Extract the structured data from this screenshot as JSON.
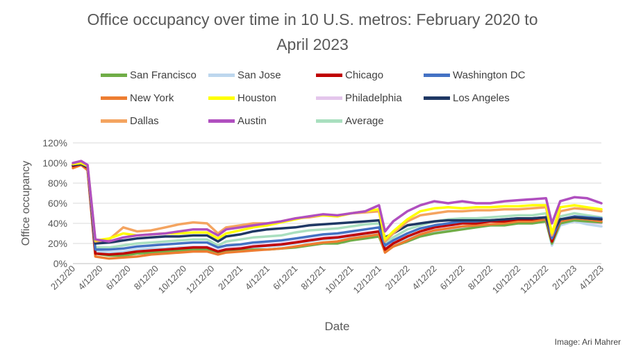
{
  "credit": "Image: Ari Mahrer",
  "colors": {
    "axis_text": "#595959",
    "gridline": "#d9d9d9"
  },
  "chart_data": {
    "type": "line",
    "title": "Office occupancy over time in 10 U.S. metros: February 2020 to April 2023",
    "title_lines": [
      "Office occupancy over time in 10 U.S. metros: February 2020 to",
      "April 2023"
    ],
    "xlabel": "Date",
    "ylabel": "Office occupancy",
    "ylim": [
      0,
      120
    ],
    "yticks": [
      0,
      20,
      40,
      60,
      80,
      100,
      120
    ],
    "ytick_labels": [
      "0%",
      "20%",
      "40%",
      "60%",
      "80%",
      "100%",
      "120%"
    ],
    "xticks": [
      "2/12/20",
      "4/12/20",
      "6/12/20",
      "8/12/20",
      "10/12/20",
      "12/12/20",
      "2/12/21",
      "4/12/21",
      "6/12/21",
      "8/12/21",
      "10/12/21",
      "12/12/21",
      "2/12/22",
      "4/12/22",
      "6/12/22",
      "8/12/22",
      "10/12/22",
      "12/12/22",
      "2/12/23",
      "4/12/23"
    ],
    "grid": true,
    "legend_position": "top",
    "x": [
      "2/12/20",
      "3/1/20",
      "3/15/20",
      "4/1/20",
      "5/1/20",
      "6/1/20",
      "7/1/20",
      "8/1/20",
      "9/1/20",
      "10/1/20",
      "11/1/20",
      "12/1/20",
      "12/25/20",
      "1/12/21",
      "2/12/21",
      "3/12/21",
      "4/12/21",
      "5/12/21",
      "6/12/21",
      "7/12/21",
      "8/12/21",
      "9/12/21",
      "10/12/21",
      "11/12/21",
      "12/12/21",
      "12/25/21",
      "1/12/22",
      "2/12/22",
      "3/12/22",
      "4/12/22",
      "5/12/22",
      "6/12/22",
      "7/12/22",
      "8/12/22",
      "9/12/22",
      "10/12/22",
      "11/12/22",
      "12/12/22",
      "12/25/22",
      "1/12/23",
      "2/12/23",
      "3/12/23",
      "4/12/23"
    ],
    "series": [
      {
        "name": "San Francisco",
        "color": "#70ad47",
        "values": [
          97,
          99,
          95,
          10,
          8,
          8,
          10,
          11,
          12,
          13,
          14,
          14,
          10,
          12,
          13,
          14,
          14,
          15,
          16,
          18,
          20,
          20,
          23,
          25,
          27,
          12,
          17,
          22,
          27,
          30,
          32,
          34,
          36,
          38,
          38,
          40,
          40,
          42,
          20,
          40,
          43,
          42,
          41
        ]
      },
      {
        "name": "San Jose",
        "color": "#bdd7ee",
        "values": [
          96,
          98,
          94,
          12,
          11,
          12,
          14,
          15,
          15,
          16,
          16,
          16,
          12,
          14,
          15,
          16,
          17,
          18,
          20,
          22,
          24,
          25,
          27,
          29,
          30,
          14,
          19,
          25,
          29,
          32,
          34,
          36,
          37,
          38,
          39,
          40,
          40,
          42,
          18,
          38,
          42,
          39,
          37
        ]
      },
      {
        "name": "Chicago",
        "color": "#c00000",
        "values": [
          97,
          99,
          95,
          10,
          9,
          10,
          12,
          13,
          14,
          15,
          16,
          16,
          12,
          14,
          15,
          17,
          18,
          19,
          21,
          23,
          25,
          26,
          28,
          30,
          32,
          14,
          20,
          27,
          32,
          36,
          38,
          40,
          40,
          42,
          42,
          44,
          44,
          46,
          22,
          44,
          46,
          45,
          44
        ]
      },
      {
        "name": "Washington DC",
        "color": "#4472c4",
        "values": [
          98,
          99,
          96,
          14,
          14,
          15,
          17,
          18,
          19,
          20,
          21,
          21,
          16,
          18,
          19,
          21,
          22,
          23,
          25,
          27,
          29,
          30,
          32,
          34,
          36,
          18,
          23,
          30,
          35,
          38,
          40,
          42,
          42,
          43,
          44,
          45,
          45,
          46,
          25,
          44,
          47,
          46,
          45
        ]
      },
      {
        "name": "New York",
        "color": "#ed7d31",
        "values": [
          95,
          98,
          93,
          7,
          5,
          6,
          7,
          9,
          10,
          11,
          12,
          12,
          9,
          11,
          12,
          13,
          14,
          15,
          17,
          19,
          21,
          22,
          25,
          27,
          29,
          11,
          17,
          23,
          29,
          33,
          35,
          37,
          38,
          39,
          40,
          42,
          42,
          44,
          23,
          42,
          45,
          44,
          42
        ]
      },
      {
        "name": "Houston",
        "color": "#ffff00",
        "values": [
          99,
          100,
          97,
          23,
          25,
          30,
          28,
          29,
          30,
          30,
          31,
          31,
          25,
          30,
          33,
          36,
          38,
          41,
          44,
          47,
          48,
          47,
          50,
          52,
          54,
          24,
          32,
          44,
          52,
          55,
          56,
          55,
          56,
          56,
          57,
          57,
          58,
          58,
          30,
          56,
          58,
          56,
          54
        ]
      },
      {
        "name": "Philadelphia",
        "color": "#e4c6ec",
        "values": [
          96,
          98,
          94,
          11,
          10,
          11,
          13,
          14,
          15,
          16,
          17,
          17,
          13,
          15,
          16,
          18,
          19,
          20,
          22,
          24,
          26,
          27,
          29,
          31,
          32,
          15,
          21,
          27,
          31,
          34,
          36,
          37,
          38,
          39,
          40,
          41,
          41,
          42,
          24,
          40,
          43,
          41,
          40
        ]
      },
      {
        "name": "Los Angeles",
        "color": "#1f3864",
        "values": [
          98,
          99,
          96,
          20,
          21,
          23,
          25,
          26,
          27,
          27,
          28,
          28,
          22,
          27,
          29,
          32,
          34,
          35,
          36,
          38,
          39,
          40,
          41,
          42,
          43,
          26,
          30,
          38,
          40,
          42,
          43,
          43,
          43,
          43,
          44,
          45,
          45,
          46,
          30,
          44,
          46,
          45,
          44
        ]
      },
      {
        "name": "Dallas",
        "color": "#f4a460",
        "values": [
          99,
          100,
          97,
          22,
          24,
          36,
          32,
          33,
          36,
          39,
          41,
          40,
          30,
          36,
          38,
          40,
          40,
          42,
          45,
          46,
          48,
          47,
          50,
          51,
          52,
          22,
          30,
          42,
          48,
          50,
          52,
          52,
          53,
          53,
          54,
          54,
          55,
          56,
          28,
          52,
          55,
          54,
          52
        ]
      },
      {
        "name": "Austin",
        "color": "#b04fbf",
        "values": [
          100,
          102,
          98,
          24,
          22,
          26,
          28,
          29,
          30,
          32,
          34,
          34,
          28,
          34,
          36,
          38,
          40,
          42,
          45,
          47,
          49,
          48,
          50,
          52,
          58,
          32,
          42,
          52,
          58,
          62,
          60,
          62,
          60,
          60,
          62,
          63,
          64,
          65,
          40,
          62,
          66,
          65,
          60
        ]
      },
      {
        "name": "Average",
        "color": "#a9dfbf",
        "values": [
          97,
          99,
          95,
          16,
          16,
          18,
          20,
          21,
          22,
          23,
          24,
          24,
          18,
          22,
          24,
          26,
          27,
          28,
          31,
          33,
          34,
          35,
          37,
          39,
          40,
          20,
          26,
          34,
          38,
          42,
          44,
          45,
          45,
          46,
          47,
          48,
          48,
          50,
          27,
          47,
          50,
          48,
          46
        ]
      }
    ]
  }
}
